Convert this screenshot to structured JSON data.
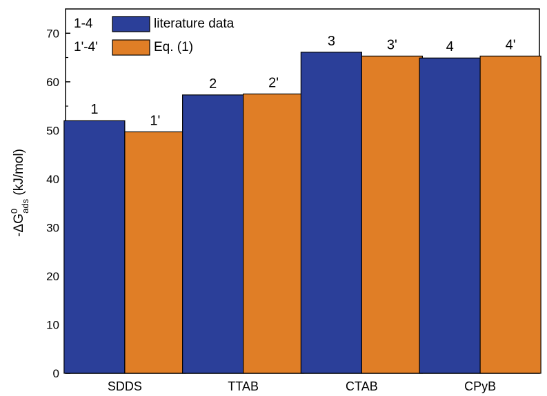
{
  "chart_data": {
    "type": "bar",
    "categories": [
      "SDDS",
      "TTAB",
      "CTAB",
      "CPyB"
    ],
    "series": [
      {
        "name": "literature data",
        "legend_prefix": "1-4",
        "color": "#2b3f99",
        "values": [
          52.0,
          57.3,
          66.1,
          64.9
        ],
        "bar_labels": [
          "1",
          "2",
          "3",
          "4"
        ]
      },
      {
        "name": "Eq. (1)",
        "legend_prefix": "1'-4'",
        "color": "#e07e26",
        "values": [
          49.7,
          57.5,
          65.3,
          65.3
        ],
        "bar_labels": [
          "1'",
          "2'",
          "3'",
          "4'"
        ]
      }
    ],
    "ylabel": {
      "pre": "-ΔG",
      "sup": "0",
      "sub": "ads",
      "post": " (kJ/mol)"
    },
    "ylim": [
      0,
      75
    ],
    "yticks": [
      0,
      10,
      20,
      30,
      40,
      50,
      60,
      70
    ],
    "legend_position": "top-left",
    "grid": false
  }
}
